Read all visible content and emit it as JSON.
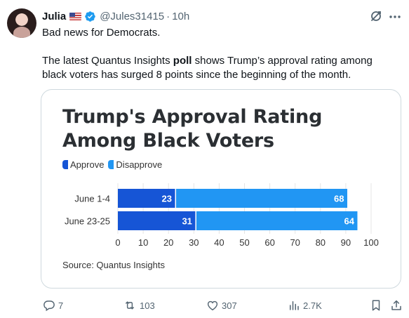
{
  "tweet": {
    "author_name": "Julia",
    "flag_icon": "us-flag-icon",
    "verified_icon": "verified-badge-icon",
    "handle": "@Jules31415",
    "separator": "·",
    "time": "10h",
    "text_line1": "Bad news for Democrats.",
    "text_line2_pre": "The latest Quantus Insights ",
    "text_line2_bold": "poll",
    "text_line2_post": " shows Trump’s approval rating among",
    "text_line3": "black voters has surged 8 points since the beginning of the month."
  },
  "colors": {
    "approve": "#1655d6",
    "disapprove": "#2196f3",
    "verified": "#1d9bf0"
  },
  "chart_data": {
    "type": "bar",
    "orientation": "horizontal",
    "stacked": true,
    "title": "Trump's Approval Rating Among Black Voters",
    "categories": [
      "June 1-4",
      "June 23-25"
    ],
    "series": [
      {
        "name": "Approve",
        "values": [
          23,
          31
        ]
      },
      {
        "name": "Disapprove",
        "values": [
          68,
          64
        ]
      }
    ],
    "xlim": [
      0,
      100
    ],
    "xticks": [
      "0",
      "10",
      "20",
      "30",
      "40",
      "50",
      "60",
      "70",
      "80",
      "90",
      "100"
    ],
    "legend": "top-left",
    "grid": true,
    "source": "Source: Quantus Insights"
  },
  "actions": {
    "reply_count": "7",
    "repost_count": "103",
    "like_count": "307",
    "views_count": "2.7K"
  }
}
